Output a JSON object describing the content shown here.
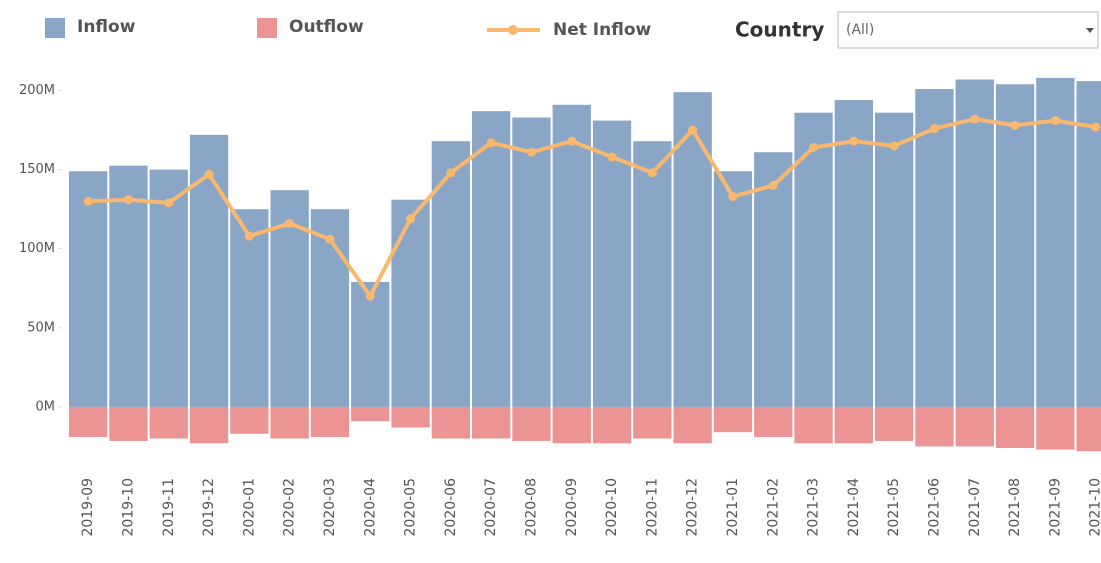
{
  "chart_data": {
    "type": "bar_line",
    "categories": [
      "2019-09",
      "2019-10",
      "2019-11",
      "2019-12",
      "2020-01",
      "2020-02",
      "2020-03",
      "2020-04",
      "2020-05",
      "2020-06",
      "2020-07",
      "2020-08",
      "2020-09",
      "2020-10",
      "2020-11",
      "2020-12",
      "2021-01",
      "2021-02",
      "2021-03",
      "2021-04",
      "2021-05",
      "2021-06",
      "2021-07",
      "2021-08",
      "2021-09",
      "2021-10"
    ],
    "series": [
      {
        "name": "Inflow",
        "color": "#8aa6c6",
        "kind": "bar",
        "values": [
          149,
          152.5,
          150,
          172,
          125,
          137,
          125,
          79,
          131,
          168,
          187,
          183,
          191,
          181,
          168,
          199,
          149,
          161,
          186,
          194,
          186,
          201,
          207,
          204,
          208,
          206
        ]
      },
      {
        "name": "Outflow",
        "color": "#ec9393",
        "kind": "bar",
        "values": [
          -19,
          -21.5,
          -20,
          -23,
          -17,
          -20,
          -19,
          -9,
          -13,
          -20,
          -20,
          -21.5,
          -23,
          -23,
          -20,
          -23,
          -16,
          -19,
          -23,
          -23,
          -21.5,
          -25,
          -25,
          -26,
          -27,
          -28
        ]
      },
      {
        "name": "Net Inflow",
        "color": "#f9b86e",
        "kind": "line",
        "values": [
          130,
          131,
          129,
          147,
          108,
          116,
          106,
          70,
          119,
          148,
          167,
          161,
          168,
          158,
          148,
          175,
          133,
          140,
          164,
          168,
          165,
          176,
          182,
          178,
          181,
          177
        ]
      }
    ],
    "ylim": [
      -38,
      213
    ],
    "yticks": [
      {
        "value": 0,
        "label": "0M"
      },
      {
        "value": 50,
        "label": "50M"
      },
      {
        "value": 100,
        "label": "100M"
      },
      {
        "value": 150,
        "label": "150M"
      },
      {
        "value": 200,
        "label": "200M"
      }
    ],
    "filter": {
      "label": "Country",
      "value": "(All)"
    }
  }
}
